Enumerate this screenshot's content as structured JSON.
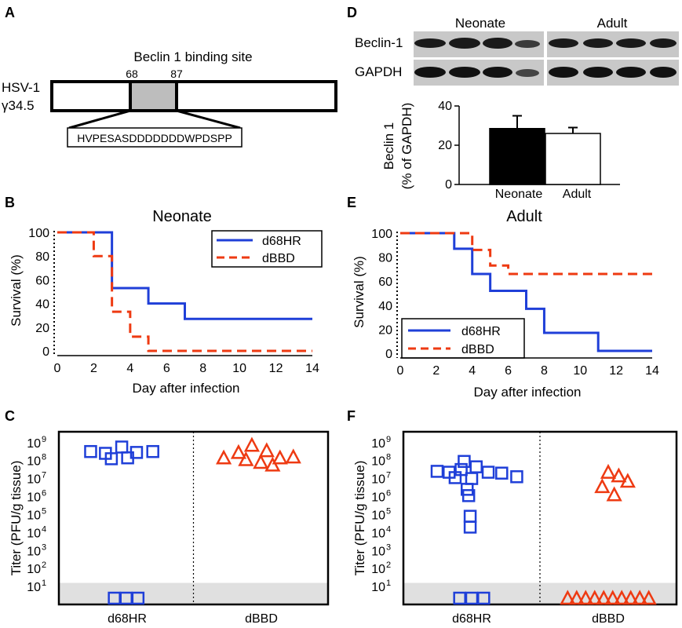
{
  "panels": {
    "A": {
      "label": "A",
      "title": "Beclin 1 binding site",
      "gene_line1": "HSV-1",
      "gene_line2": "γ34.5",
      "start": "68",
      "end": "87",
      "sequence": "HVPESASDDDDDDDWPDSPP"
    },
    "D": {
      "label": "D",
      "blot_neonate": "Neonate",
      "blot_adult": "Adult",
      "row1": "Beclin-1",
      "row2": "GAPDH"
    },
    "B": {
      "label": "B"
    },
    "E": {
      "label": "E"
    },
    "C": {
      "label": "C"
    },
    "F": {
      "label": "F"
    }
  },
  "colors": {
    "d68HR": "#1f3fd8",
    "dBBD": "#ee3a12",
    "bar_neonate": "#000000",
    "bar_adult": "#ffffff",
    "detection_band": "#e0e0e0"
  },
  "chart_data": [
    {
      "id": "D",
      "type": "bar",
      "categories": [
        "Neonate",
        "Adult"
      ],
      "values": [
        28.5,
        26
      ],
      "errors": [
        6.5,
        3
      ],
      "ylabel_line1": "Beclin 1",
      "ylabel_line2": "(% of GAPDH)",
      "ylim": [
        0,
        40
      ],
      "yticks": [
        "0",
        "20",
        "40"
      ]
    },
    {
      "id": "B",
      "type": "line",
      "title": "Neonate",
      "xlabel": "Day after infection",
      "ylabel": "Survival (%)",
      "xlim": [
        0,
        14
      ],
      "ylim": [
        0,
        100
      ],
      "xticks": [
        "0",
        "2",
        "4",
        "6",
        "8",
        "10",
        "12",
        "14"
      ],
      "yticks": [
        "0",
        "20",
        "40",
        "60",
        "80",
        "100"
      ],
      "legend_position": "top-right",
      "series": [
        {
          "name": "d68HR",
          "style": "solid",
          "steps": [
            [
              0,
              100
            ],
            [
              3,
              100
            ],
            [
              3,
              53
            ],
            [
              5,
              53
            ],
            [
              5,
              40
            ],
            [
              7,
              40
            ],
            [
              7,
              27
            ],
            [
              14,
              27
            ]
          ]
        },
        {
          "name": "dBBD",
          "style": "dashed",
          "steps": [
            [
              0,
              100
            ],
            [
              2,
              100
            ],
            [
              2,
              80
            ],
            [
              3,
              80
            ],
            [
              3,
              33
            ],
            [
              4,
              33
            ],
            [
              4,
              12
            ],
            [
              5,
              12
            ],
            [
              5,
              0
            ],
            [
              14,
              0
            ]
          ]
        }
      ]
    },
    {
      "id": "E",
      "type": "line",
      "title": "Adult",
      "xlabel": "Day after infection",
      "ylabel": "Survival (%)",
      "xlim": [
        0,
        14
      ],
      "ylim": [
        0,
        100
      ],
      "xticks": [
        "0",
        "2",
        "4",
        "6",
        "8",
        "10",
        "12",
        "14"
      ],
      "yticks": [
        "0",
        "20",
        "40",
        "60",
        "80",
        "100"
      ],
      "legend_position": "bottom-left",
      "series": [
        {
          "name": "d68HR",
          "style": "solid",
          "steps": [
            [
              0,
              100
            ],
            [
              3,
              100
            ],
            [
              3,
              87
            ],
            [
              4,
              87
            ],
            [
              4,
              66
            ],
            [
              5,
              66
            ],
            [
              5,
              52
            ],
            [
              7,
              52
            ],
            [
              7,
              37
            ],
            [
              8,
              37
            ],
            [
              8,
              17
            ],
            [
              11,
              17
            ],
            [
              11,
              2
            ],
            [
              14,
              2
            ]
          ]
        },
        {
          "name": "dBBD",
          "style": "dashed",
          "steps": [
            [
              0,
              100
            ],
            [
              4,
              100
            ],
            [
              4,
              86
            ],
            [
              5,
              86
            ],
            [
              5,
              73
            ],
            [
              6,
              73
            ],
            [
              6,
              66
            ],
            [
              14,
              66
            ]
          ]
        }
      ]
    },
    {
      "id": "C",
      "type": "scatter",
      "ylabel": "Titer (PFU/g tissue)",
      "yscale": "log",
      "ylim_log10": [
        0,
        9.6
      ],
      "yticks": [
        "10",
        "10",
        "10",
        "10",
        "10",
        "10",
        "10",
        "10",
        "10"
      ],
      "ytick_exponents": [
        "1",
        "2",
        "3",
        "4",
        "5",
        "6",
        "7",
        "8",
        "9"
      ],
      "groups": [
        "d68HR",
        "dBBD"
      ],
      "points": [
        {
          "group": "d68HR",
          "marker": "square",
          "x": -0.48,
          "log10": 8.5
        },
        {
          "group": "d68HR",
          "marker": "square",
          "x": -0.28,
          "log10": 8.4
        },
        {
          "group": "d68HR",
          "marker": "square",
          "x": -0.06,
          "log10": 8.75
        },
        {
          "group": "d68HR",
          "marker": "square",
          "x": 0.14,
          "log10": 8.45
        },
        {
          "group": "d68HR",
          "marker": "square",
          "x": 0.36,
          "log10": 8.5
        },
        {
          "group": "d68HR",
          "marker": "square",
          "x": -0.2,
          "log10": 8.1
        },
        {
          "group": "d68HR",
          "marker": "square",
          "x": 0.02,
          "log10": 8.15
        },
        {
          "group": "d68HR",
          "marker": "square",
          "x": -0.16,
          "log10": 0
        },
        {
          "group": "d68HR",
          "marker": "square",
          "x": 0.0,
          "log10": 0
        },
        {
          "group": "d68HR",
          "marker": "square",
          "x": 0.16,
          "log10": 0
        },
        {
          "group": "dBBD",
          "marker": "triangle",
          "x": -0.5,
          "log10": 8.15
        },
        {
          "group": "dBBD",
          "marker": "triangle",
          "x": -0.3,
          "log10": 8.45
        },
        {
          "group": "dBBD",
          "marker": "triangle",
          "x": -0.12,
          "log10": 8.85
        },
        {
          "group": "dBBD",
          "marker": "triangle",
          "x": 0.08,
          "log10": 8.55
        },
        {
          "group": "dBBD",
          "marker": "triangle",
          "x": 0.26,
          "log10": 8.15
        },
        {
          "group": "dBBD",
          "marker": "triangle",
          "x": 0.44,
          "log10": 8.2
        },
        {
          "group": "dBBD",
          "marker": "triangle",
          "x": -0.2,
          "log10": 8.05
        },
        {
          "group": "dBBD",
          "marker": "triangle",
          "x": 0.0,
          "log10": 7.9
        },
        {
          "group": "dBBD",
          "marker": "triangle",
          "x": 0.16,
          "log10": 7.75
        }
      ]
    },
    {
      "id": "F",
      "type": "scatter",
      "ylabel": "Titer (PFU/g tissue)",
      "yscale": "log",
      "ylim_log10": [
        0,
        9.6
      ],
      "yticks": [
        "10",
        "10",
        "10",
        "10",
        "10",
        "10",
        "10",
        "10",
        "10"
      ],
      "ytick_exponents": [
        "1",
        "2",
        "3",
        "4",
        "5",
        "6",
        "7",
        "8",
        "9"
      ],
      "groups": [
        "d68HR",
        "dBBD"
      ],
      "points": [
        {
          "group": "d68HR",
          "marker": "square",
          "x": -0.1,
          "log10": 7.95
        },
        {
          "group": "d68HR",
          "marker": "square",
          "x": -0.46,
          "log10": 7.4
        },
        {
          "group": "d68HR",
          "marker": "square",
          "x": -0.3,
          "log10": 7.35
        },
        {
          "group": "d68HR",
          "marker": "square",
          "x": -0.14,
          "log10": 7.5
        },
        {
          "group": "d68HR",
          "marker": "square",
          "x": 0.06,
          "log10": 7.65
        },
        {
          "group": "d68HR",
          "marker": "square",
          "x": 0.22,
          "log10": 7.35
        },
        {
          "group": "d68HR",
          "marker": "square",
          "x": 0.4,
          "log10": 7.3
        },
        {
          "group": "d68HR",
          "marker": "square",
          "x": 0.6,
          "log10": 7.1
        },
        {
          "group": "d68HR",
          "marker": "square",
          "x": -0.22,
          "log10": 7.05
        },
        {
          "group": "d68HR",
          "marker": "square",
          "x": 0.0,
          "log10": 7.0
        },
        {
          "group": "d68HR",
          "marker": "square",
          "x": -0.06,
          "log10": 6.4
        },
        {
          "group": "d68HR",
          "marker": "square",
          "x": -0.04,
          "log10": 6.05
        },
        {
          "group": "d68HR",
          "marker": "square",
          "x": -0.02,
          "log10": 4.9
        },
        {
          "group": "d68HR",
          "marker": "square",
          "x": -0.02,
          "log10": 4.3
        },
        {
          "group": "d68HR",
          "marker": "square",
          "x": -0.16,
          "log10": 0
        },
        {
          "group": "d68HR",
          "marker": "square",
          "x": 0.0,
          "log10": 0
        },
        {
          "group": "d68HR",
          "marker": "square",
          "x": 0.16,
          "log10": 0
        },
        {
          "group": "dBBD",
          "marker": "triangle",
          "x": 0.0,
          "log10": 7.35
        },
        {
          "group": "dBBD",
          "marker": "triangle",
          "x": 0.14,
          "log10": 7.15
        },
        {
          "group": "dBBD",
          "marker": "triangle",
          "x": 0.26,
          "log10": 6.85
        },
        {
          "group": "dBBD",
          "marker": "triangle",
          "x": -0.08,
          "log10": 6.55
        },
        {
          "group": "dBBD",
          "marker": "triangle",
          "x": 0.08,
          "log10": 6.1
        },
        {
          "group": "dBBD",
          "marker": "triangle",
          "x": -0.54,
          "log10": 0
        },
        {
          "group": "dBBD",
          "marker": "triangle",
          "x": -0.42,
          "log10": 0
        },
        {
          "group": "dBBD",
          "marker": "triangle",
          "x": -0.3,
          "log10": 0
        },
        {
          "group": "dBBD",
          "marker": "triangle",
          "x": -0.18,
          "log10": 0
        },
        {
          "group": "dBBD",
          "marker": "triangle",
          "x": -0.06,
          "log10": 0
        },
        {
          "group": "dBBD",
          "marker": "triangle",
          "x": 0.06,
          "log10": 0
        },
        {
          "group": "dBBD",
          "marker": "triangle",
          "x": 0.18,
          "log10": 0
        },
        {
          "group": "dBBD",
          "marker": "triangle",
          "x": 0.3,
          "log10": 0
        },
        {
          "group": "dBBD",
          "marker": "triangle",
          "x": 0.42,
          "log10": 0
        },
        {
          "group": "dBBD",
          "marker": "triangle",
          "x": 0.54,
          "log10": 0
        }
      ]
    }
  ]
}
